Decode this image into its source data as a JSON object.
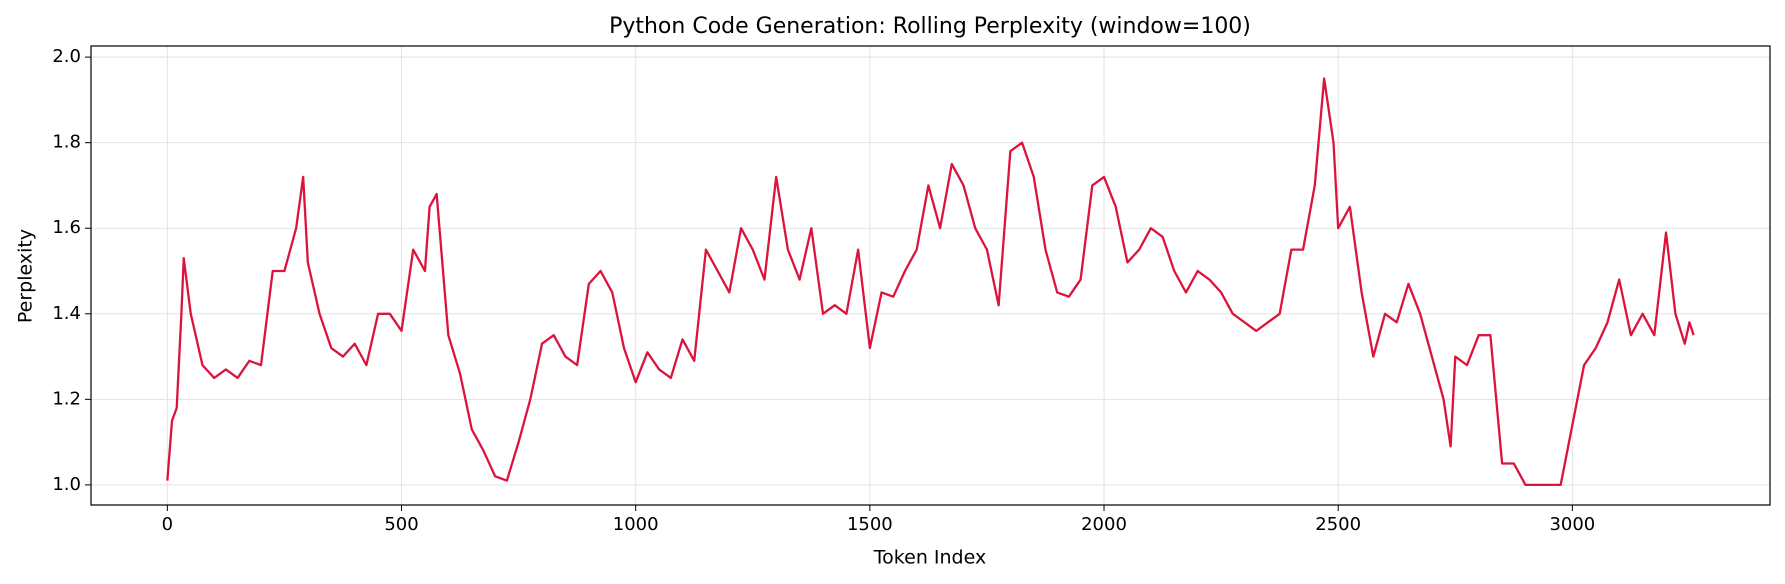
{
  "chart_data": {
    "type": "line",
    "title": "Python Code Generation: Rolling Perplexity (window=100)",
    "x_label": "Token Index",
    "y_label": "Perplexity",
    "xlim": [
      -163,
      3422
    ],
    "ylim": [
      0.953,
      2.026
    ],
    "xticks": [
      0,
      500,
      1000,
      1500,
      2000,
      2500,
      3000
    ],
    "yticks": [
      {
        "value": 1.0,
        "label": "1.0"
      },
      1.2,
      1.4,
      1.6,
      1.8,
      {
        "value": 2.0,
        "label": "2.0"
      }
    ],
    "grid": true,
    "x": [
      0,
      10,
      20,
      30,
      35,
      50,
      75,
      100,
      125,
      150,
      175,
      200,
      225,
      250,
      275,
      290,
      300,
      325,
      350,
      375,
      400,
      425,
      450,
      475,
      500,
      525,
      550,
      560,
      575,
      600,
      625,
      650,
      675,
      700,
      725,
      750,
      775,
      800,
      825,
      850,
      875,
      900,
      925,
      950,
      975,
      1000,
      1025,
      1050,
      1075,
      1100,
      1125,
      1150,
      1175,
      1200,
      1225,
      1250,
      1275,
      1300,
      1325,
      1350,
      1375,
      1400,
      1425,
      1450,
      1475,
      1500,
      1525,
      1550,
      1575,
      1600,
      1625,
      1650,
      1675,
      1700,
      1725,
      1750,
      1775,
      1800,
      1825,
      1850,
      1875,
      1900,
      1925,
      1950,
      1975,
      2000,
      2025,
      2050,
      2075,
      2100,
      2125,
      2150,
      2175,
      2200,
      2225,
      2250,
      2275,
      2300,
      2325,
      2350,
      2375,
      2400,
      2425,
      2450,
      2470,
      2490,
      2500,
      2525,
      2550,
      2575,
      2600,
      2625,
      2650,
      2675,
      2700,
      2725,
      2740,
      2750,
      2775,
      2800,
      2825,
      2850,
      2875,
      2900,
      2925,
      2950,
      2975,
      3000,
      3025,
      3050,
      3075,
      3100,
      3125,
      3150,
      3175,
      3200,
      3220,
      3240,
      3250,
      3259
    ],
    "series": [
      {
        "name": "Rolling Perplexity",
        "color": "#dc143c",
        "values": [
          1.01,
          1.15,
          1.18,
          1.4,
          1.53,
          1.4,
          1.28,
          1.25,
          1.27,
          1.25,
          1.29,
          1.28,
          1.5,
          1.5,
          1.6,
          1.72,
          1.52,
          1.4,
          1.32,
          1.3,
          1.33,
          1.28,
          1.4,
          1.4,
          1.36,
          1.55,
          1.5,
          1.65,
          1.68,
          1.35,
          1.26,
          1.13,
          1.08,
          1.02,
          1.01,
          1.1,
          1.2,
          1.33,
          1.35,
          1.3,
          1.28,
          1.47,
          1.5,
          1.45,
          1.32,
          1.24,
          1.31,
          1.27,
          1.25,
          1.34,
          1.29,
          1.55,
          1.5,
          1.45,
          1.6,
          1.55,
          1.48,
          1.72,
          1.55,
          1.48,
          1.6,
          1.4,
          1.42,
          1.4,
          1.55,
          1.32,
          1.45,
          1.44,
          1.5,
          1.55,
          1.7,
          1.6,
          1.75,
          1.7,
          1.6,
          1.55,
          1.42,
          1.78,
          1.8,
          1.72,
          1.55,
          1.45,
          1.44,
          1.48,
          1.7,
          1.72,
          1.65,
          1.52,
          1.55,
          1.6,
          1.58,
          1.5,
          1.45,
          1.5,
          1.48,
          1.45,
          1.4,
          1.38,
          1.36,
          1.38,
          1.4,
          1.55,
          1.55,
          1.7,
          1.95,
          1.8,
          1.6,
          1.65,
          1.45,
          1.3,
          1.4,
          1.38,
          1.47,
          1.4,
          1.3,
          1.2,
          1.09,
          1.3,
          1.28,
          1.35,
          1.35,
          1.05,
          1.05,
          1.0,
          1.0,
          1.0,
          1.0,
          1.14,
          1.28,
          1.32,
          1.38,
          1.48,
          1.35,
          1.4,
          1.35,
          1.59,
          1.4,
          1.33,
          1.38,
          1.35
        ]
      }
    ]
  }
}
